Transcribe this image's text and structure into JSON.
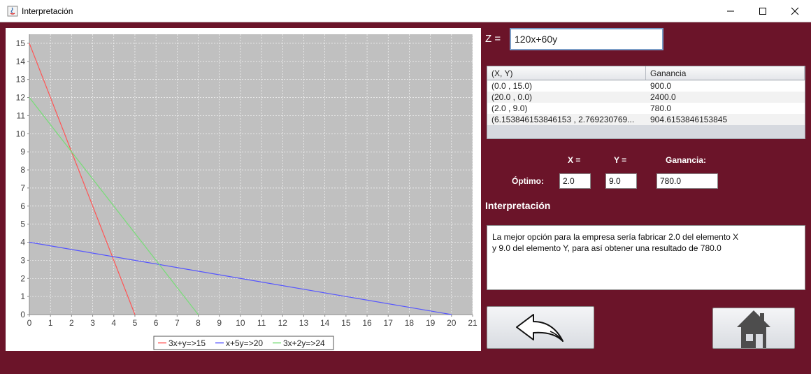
{
  "window": {
    "title": "Interpretación"
  },
  "objective": {
    "label": "Z =",
    "value": "120x+60y"
  },
  "table": {
    "headers": [
      "(X, Y)",
      "Ganancia"
    ],
    "rows": [
      [
        "(0.0 , 15.0)",
        "900.0"
      ],
      [
        "(20.0 , 0.0)",
        "2400.0"
      ],
      [
        "(2.0 , 9.0)",
        "780.0"
      ],
      [
        "(6.153846153846153 , 2.769230769...",
        "904.6153846153845"
      ]
    ]
  },
  "optimum": {
    "x_header": "X =",
    "y_header": "Y =",
    "gain_header": "Ganancia:",
    "row_label": "Óptimo:",
    "x_value": "2.0",
    "y_value": "9.0",
    "gain_value": "780.0"
  },
  "interpretation": {
    "title": "Interpretación",
    "lines": [
      "La mejor opción para la empresa sería fabricar 2.0 del elemento X",
      "y 9.0 del elemento Y, para así obtener una resultado de 780.0"
    ]
  },
  "buttons": {
    "back_icon": "back-arrow-icon",
    "home_icon": "home-icon"
  },
  "colors": {
    "background": "#6b1429",
    "plot_background": "#c0c0c0"
  },
  "chart_data": {
    "type": "line",
    "xlim": [
      0,
      21
    ],
    "ylim": [
      0,
      15.5
    ],
    "x_ticks": [
      0,
      1,
      2,
      3,
      4,
      5,
      6,
      7,
      8,
      9,
      10,
      11,
      12,
      13,
      14,
      15,
      16,
      17,
      18,
      19,
      20,
      21
    ],
    "y_ticks": [
      0,
      1,
      2,
      3,
      4,
      5,
      6,
      7,
      8,
      9,
      10,
      11,
      12,
      13,
      14,
      15
    ],
    "grid": true,
    "legend_position": "bottom",
    "series": [
      {
        "name": "3x+y=>15",
        "color": "#ff5555",
        "x": [
          0,
          5
        ],
        "y": [
          15,
          0
        ]
      },
      {
        "name": "x+5y=>20",
        "color": "#5555ff",
        "x": [
          0,
          20
        ],
        "y": [
          4,
          0
        ]
      },
      {
        "name": "3x+2y=>24",
        "color": "#77dd77",
        "x": [
          0,
          8
        ],
        "y": [
          12,
          0
        ]
      }
    ]
  }
}
